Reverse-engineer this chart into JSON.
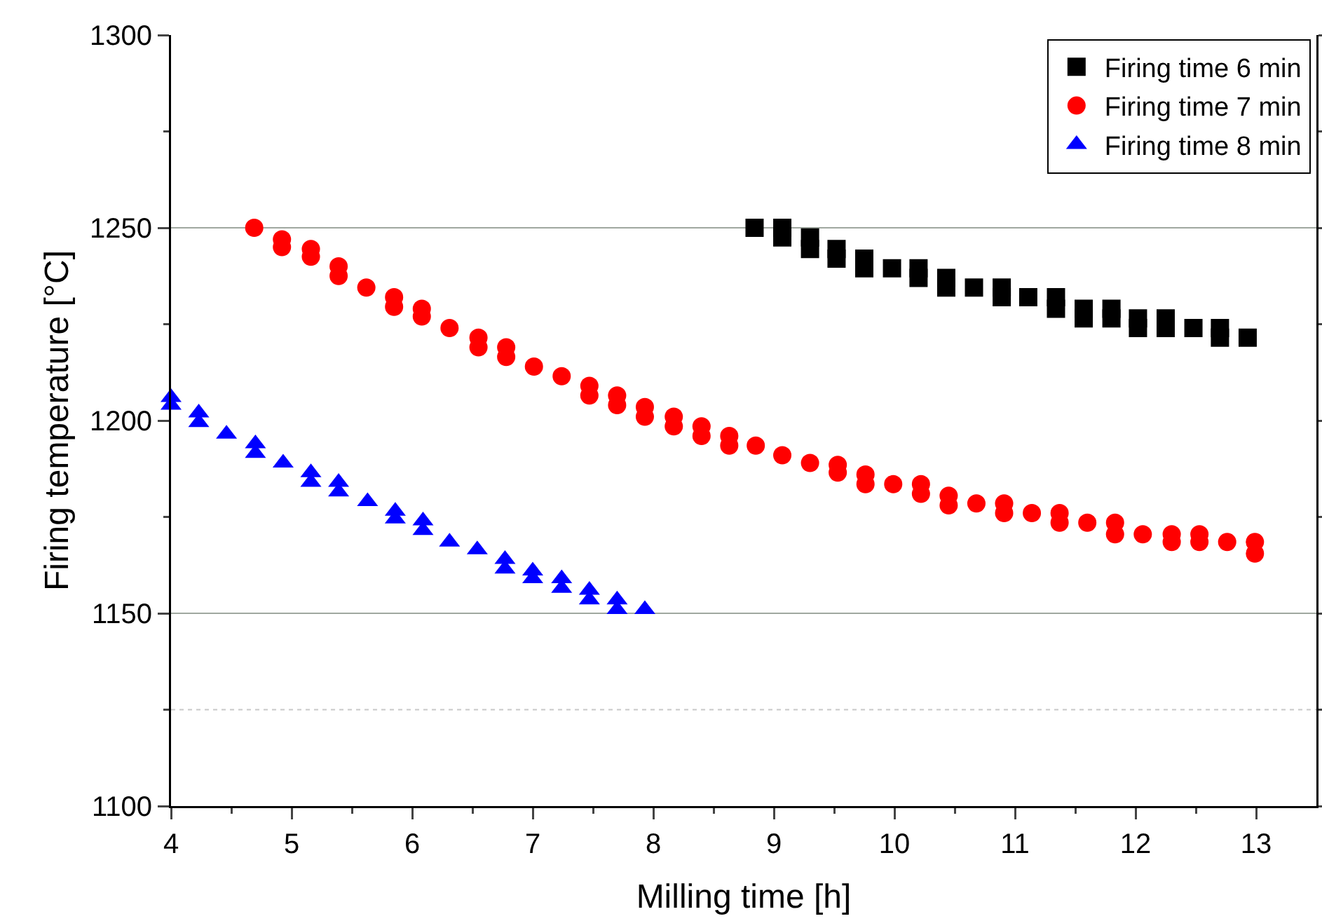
{
  "chart_data": {
    "type": "scatter",
    "xlabel": "Milling time [h]",
    "ylabel": "Firing temperature [°C]",
    "xlim": [
      4,
      13.5
    ],
    "xticks": [
      4,
      5,
      6,
      7,
      8,
      9,
      10,
      11,
      12,
      13
    ],
    "ylim": [
      1100,
      1300
    ],
    "yticks": [
      1100,
      1150,
      1200,
      1250,
      1300
    ],
    "legend": "top right",
    "ref_lines": [
      {
        "axis": "y",
        "value": 1250,
        "color": "#a0a8a0",
        "line_style": "solid"
      },
      {
        "axis": "y",
        "value": 1150,
        "color": "#a0a8a0",
        "line_style": "solid"
      },
      {
        "axis": "y",
        "value": 1125,
        "color": "#c8c8c8",
        "line_style": "dotted"
      }
    ],
    "series": [
      {
        "name": "Firing time 6 min",
        "color": "#000000",
        "marker": "square",
        "x": [
          8.84,
          9.07,
          9.07,
          9.3,
          9.3,
          9.52,
          9.52,
          9.75,
          9.75,
          9.98,
          10.2,
          10.2,
          10.43,
          10.43,
          10.66,
          10.89,
          10.89,
          11.11,
          11.34,
          11.34,
          11.57,
          11.57,
          11.8,
          11.8,
          12.02,
          12.02,
          12.25,
          12.25,
          12.48,
          12.7,
          12.7,
          12.93
        ],
        "values": [
          1250,
          1250,
          1247.5,
          1247.5,
          1244.5,
          1244.5,
          1242,
          1242,
          1239.5,
          1239.5,
          1239.5,
          1237,
          1237,
          1234.5,
          1234.5,
          1234.5,
          1232,
          1232,
          1232,
          1229,
          1229,
          1226.5,
          1229,
          1226.5,
          1226.5,
          1224,
          1226.5,
          1224,
          1224,
          1224,
          1221.5,
          1221.5
        ]
      },
      {
        "name": "Firing time 7 min",
        "color": "#ff0000",
        "marker": "circle",
        "x": [
          4.69,
          4.92,
          4.92,
          5.16,
          5.16,
          5.39,
          5.39,
          5.62,
          5.85,
          5.85,
          6.08,
          6.08,
          6.31,
          6.55,
          6.55,
          6.78,
          6.78,
          7.01,
          7.24,
          7.47,
          7.47,
          7.7,
          7.7,
          7.93,
          7.93,
          8.17,
          8.17,
          8.4,
          8.4,
          8.63,
          8.63,
          8.85,
          9.07,
          9.3,
          9.53,
          9.53,
          9.76,
          9.76,
          9.99,
          10.22,
          10.22,
          10.45,
          10.45,
          10.68,
          10.91,
          10.91,
          11.14,
          11.37,
          11.37,
          11.6,
          11.83,
          11.83,
          12.06,
          12.3,
          12.3,
          12.53,
          12.53,
          12.76,
          12.99,
          12.99
        ],
        "values": [
          1250,
          1247,
          1245,
          1244.5,
          1242.5,
          1240,
          1237.5,
          1234.5,
          1232,
          1229.5,
          1229,
          1227,
          1224,
          1221.5,
          1219,
          1219,
          1216.5,
          1214,
          1211.5,
          1209,
          1206.5,
          1206.5,
          1204,
          1203.5,
          1201,
          1201,
          1198.5,
          1198.5,
          1196,
          1196,
          1193.5,
          1193.5,
          1191,
          1189,
          1188.5,
          1186.5,
          1186,
          1183.5,
          1183.5,
          1183.5,
          1181,
          1180.5,
          1178,
          1178.5,
          1178.5,
          1176,
          1176,
          1176,
          1173.5,
          1173.5,
          1173.5,
          1170.5,
          1170.5,
          1170.5,
          1168.5,
          1170.5,
          1168.5,
          1168.5,
          1168.5,
          1165.5
        ]
      },
      {
        "name": "Firing time 8 min",
        "color": "#0000ff",
        "marker": "triangle",
        "x": [
          4,
          4,
          4.23,
          4.23,
          4.46,
          4.7,
          4.7,
          4.93,
          5.16,
          5.16,
          5.39,
          5.39,
          5.63,
          5.86,
          5.86,
          6.09,
          6.09,
          6.31,
          6.54,
          6.77,
          6.77,
          7,
          7,
          7.24,
          7.24,
          7.47,
          7.47,
          7.7,
          7.7,
          7.93
        ],
        "values": [
          1206,
          1204,
          1202,
          1199.5,
          1196.5,
          1194,
          1191.5,
          1189,
          1186.5,
          1184,
          1184,
          1181.5,
          1179,
          1176.5,
          1174.5,
          1174,
          1171.5,
          1168.5,
          1166.5,
          1164,
          1161.5,
          1161,
          1159,
          1159,
          1156.5,
          1156,
          1153.5,
          1153.5,
          1151,
          1151
        ]
      }
    ]
  }
}
